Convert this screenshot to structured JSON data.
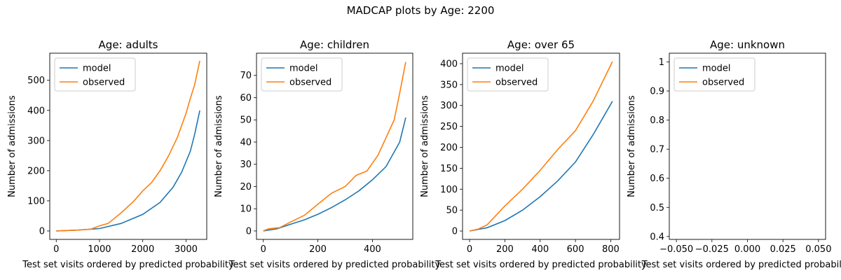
{
  "suptitle": "MADCAP plots by Age: 2200",
  "colors": {
    "model": "#1f77b4",
    "observed": "#ff7f0e"
  },
  "chart_data": [
    {
      "type": "line",
      "title": "Age: adults",
      "xlabel": "Test set visits ordered by predicted probability",
      "ylabel": "Number of admissions",
      "xlim": [
        -150,
        3480
      ],
      "ylim": [
        -28,
        590
      ],
      "xticks": [
        0,
        1000,
        2000,
        3000
      ],
      "yticks": [
        0,
        100,
        200,
        300,
        400,
        500
      ],
      "legend": "top-left",
      "series": [
        {
          "name": "model",
          "x": [
            0,
            500,
            1000,
            1500,
            2000,
            2400,
            2700,
            2900,
            3100,
            3200,
            3320
          ],
          "y": [
            0,
            3,
            8,
            25,
            55,
            95,
            145,
            195,
            265,
            320,
            400
          ]
        },
        {
          "name": "observed",
          "x": [
            0,
            500,
            800,
            1000,
            1200,
            1500,
            1800,
            2000,
            2200,
            2400,
            2600,
            2800,
            3000,
            3100,
            3200,
            3320
          ],
          "y": [
            0,
            3,
            6,
            17,
            25,
            60,
            100,
            133,
            160,
            200,
            250,
            310,
            390,
            440,
            485,
            565
          ]
        }
      ]
    },
    {
      "type": "line",
      "title": "Age: children",
      "xlabel": "Test set visits ordered by predicted probability",
      "ylabel": "Number of admissions",
      "xlim": [
        -25,
        548
      ],
      "ylim": [
        -3.8,
        80
      ],
      "xticks": [
        0,
        200,
        400
      ],
      "yticks": [
        0,
        10,
        20,
        30,
        40,
        50,
        60,
        70
      ],
      "legend": "top-left",
      "series": [
        {
          "name": "model",
          "x": [
            0,
            50,
            100,
            150,
            200,
            250,
            300,
            350,
            400,
            450,
            500,
            522
          ],
          "y": [
            0,
            1,
            3,
            5,
            7.5,
            10.5,
            14,
            18,
            23,
            29,
            40,
            51
          ]
        },
        {
          "name": "observed",
          "x": [
            0,
            20,
            60,
            100,
            150,
            200,
            250,
            300,
            340,
            380,
            420,
            450,
            480,
            500,
            522
          ],
          "y": [
            0,
            1,
            1.5,
            4,
            7,
            12,
            17,
            20,
            25,
            27,
            34,
            42,
            50,
            62,
            76
          ]
        }
      ]
    },
    {
      "type": "line",
      "title": "Age: over 65",
      "xlabel": "Test set visits ordered by predicted probability",
      "ylabel": "Number of admissions",
      "xlim": [
        -40,
        850
      ],
      "ylim": [
        -20,
        425
      ],
      "xticks": [
        0,
        200,
        400,
        600,
        800
      ],
      "yticks": [
        0,
        50,
        100,
        150,
        200,
        250,
        300,
        350,
        400
      ],
      "legend": "top-left",
      "series": [
        {
          "name": "model",
          "x": [
            0,
            100,
            200,
            300,
            400,
            500,
            600,
            700,
            810
          ],
          "y": [
            0,
            8,
            25,
            50,
            82,
            120,
            165,
            230,
            310
          ]
        },
        {
          "name": "observed",
          "x": [
            0,
            50,
            100,
            200,
            300,
            400,
            500,
            600,
            700,
            810
          ],
          "y": [
            0,
            5,
            15,
            60,
            100,
            145,
            195,
            240,
            310,
            405
          ]
        }
      ]
    },
    {
      "type": "line",
      "title": "Age: unknown",
      "xlabel": "Test set visits ordered by predicted probability",
      "ylabel": "Number of admissions",
      "xlim": [
        -0.055,
        0.055
      ],
      "ylim": [
        0.39,
        1.03
      ],
      "xticks": [
        -0.05,
        -0.025,
        0.0,
        0.025,
        0.05
      ],
      "xticklabels": [
        "−0.050",
        "−0.025",
        "0.000",
        "0.025",
        "0.050"
      ],
      "yticks": [
        0.4,
        0.5,
        0.6,
        0.7,
        0.8,
        0.9,
        1.0
      ],
      "legend": "top-left",
      "series": [
        {
          "name": "model",
          "x": [],
          "y": []
        },
        {
          "name": "observed",
          "x": [],
          "y": []
        }
      ]
    }
  ]
}
